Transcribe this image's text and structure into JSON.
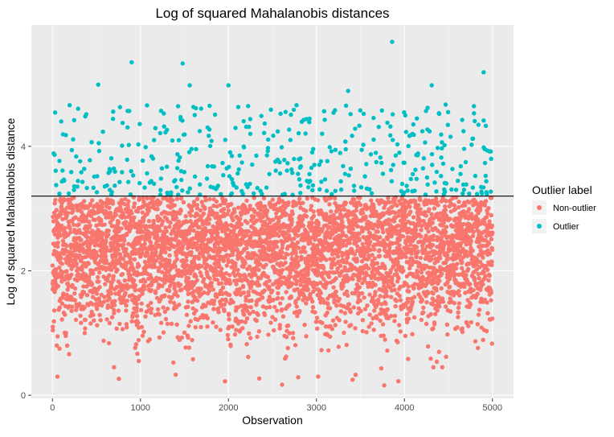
{
  "chart_data": {
    "type": "scatter",
    "title": "Log of squared Mahalanobis distances",
    "xlabel": "Observation",
    "ylabel": "Log of squared Mahalanobis distance",
    "xlim": [
      -240,
      5240
    ],
    "ylim": [
      -0.05,
      5.95
    ],
    "x_ticks": [
      0,
      1000,
      2000,
      3000,
      4000,
      5000
    ],
    "y_ticks": [
      0,
      2,
      4
    ],
    "grid": true,
    "threshold": 3.2,
    "n_points": 5000,
    "legend": {
      "title": "Outlier label",
      "position": "right",
      "entries": [
        {
          "label": "Non-outlier",
          "color": "#F8766D"
        },
        {
          "label": "Outlier",
          "color": "#00BFC4"
        }
      ]
    },
    "series": [
      {
        "name": "Non-outlier",
        "color": "#F8766D",
        "y_range": [
          0.15,
          3.2
        ],
        "notable_points": [
          [
            2350,
            0.27
          ],
          [
            2610,
            0.17
          ],
          [
            3770,
            0.16
          ],
          [
            3020,
            0.3
          ],
          [
            1400,
            0.33
          ],
          [
            980,
            0.55
          ],
          [
            4430,
            0.45
          ],
          [
            700,
            0.45
          ]
        ]
      },
      {
        "name": "Outlier",
        "color": "#00BFC4",
        "y_range": [
          3.2,
          5.7
        ],
        "notable_points": [
          [
            3860,
            5.68
          ],
          [
            900,
            5.35
          ],
          [
            1480,
            5.33
          ],
          [
            4900,
            5.19
          ],
          [
            2000,
            4.98
          ],
          [
            4310,
            4.98
          ],
          [
            1560,
            4.98
          ],
          [
            520,
            4.99
          ],
          [
            3360,
            4.89
          ]
        ]
      }
    ]
  }
}
